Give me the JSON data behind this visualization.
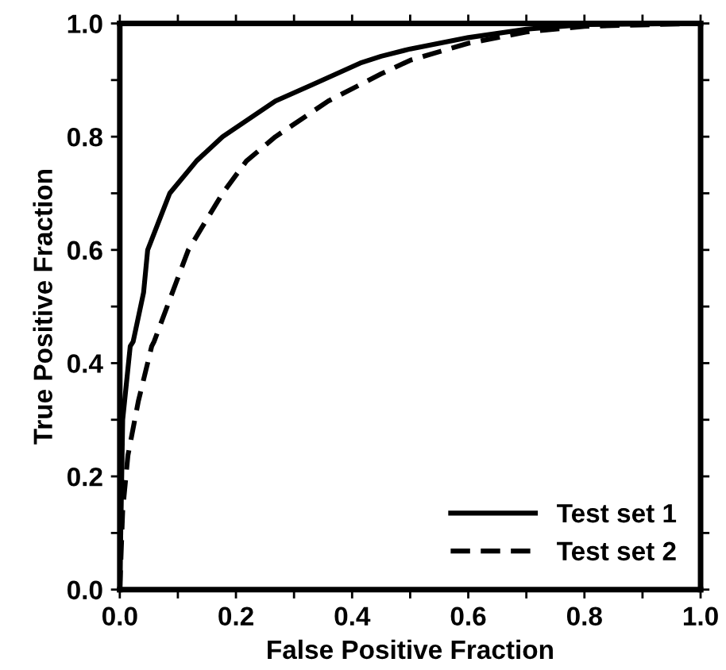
{
  "chart_data": {
    "type": "line",
    "xlabel": "False Positive Fraction",
    "ylabel": "True Positive Fraction",
    "xlim": [
      0,
      1
    ],
    "ylim": [
      0,
      1
    ],
    "xticks": [
      {
        "value": 0.0,
        "label": "0.0"
      },
      {
        "value": 0.1,
        "label": null
      },
      {
        "value": 0.2,
        "label": "0.2"
      },
      {
        "value": 0.3,
        "label": null
      },
      {
        "value": 0.4,
        "label": "0.4"
      },
      {
        "value": 0.5,
        "label": null
      },
      {
        "value": 0.6,
        "label": "0.6"
      },
      {
        "value": 0.7,
        "label": null
      },
      {
        "value": 0.8,
        "label": "0.8"
      },
      {
        "value": 0.9,
        "label": null
      },
      {
        "value": 1.0,
        "label": "1.0"
      }
    ],
    "yticks": [
      {
        "value": 0.0,
        "label": "0.0"
      },
      {
        "value": 0.1,
        "label": null
      },
      {
        "value": 0.2,
        "label": "0.2"
      },
      {
        "value": 0.3,
        "label": null
      },
      {
        "value": 0.4,
        "label": "0.4"
      },
      {
        "value": 0.5,
        "label": null
      },
      {
        "value": 0.6,
        "label": "0.6"
      },
      {
        "value": 0.7,
        "label": null
      },
      {
        "value": 0.8,
        "label": "0.8"
      },
      {
        "value": 0.9,
        "label": null
      },
      {
        "value": 1.0,
        "label": "1.0"
      }
    ],
    "grid": false,
    "legend": "bottom right",
    "marker": "none",
    "series": [
      {
        "name": "Test set 1",
        "color": "#000000",
        "line_style": "solid",
        "x": [
          0,
          0.005,
          0.018,
          0.023,
          0.041,
          0.048,
          0.086,
          0.132,
          0.177,
          0.268,
          0.332,
          0.414,
          0.45,
          0.5,
          0.6,
          0.7,
          0.8,
          1.0
        ],
        "values": [
          0,
          0.3,
          0.43,
          0.438,
          0.525,
          0.6,
          0.7,
          0.757,
          0.8,
          0.863,
          0.892,
          0.93,
          0.942,
          0.955,
          0.975,
          0.99,
          0.998,
          1.0
        ]
      },
      {
        "name": "Test set 2",
        "color": "#000000",
        "line_style": "dashed",
        "x": [
          0,
          0.005,
          0.014,
          0.032,
          0.055,
          0.059,
          0.091,
          0.118,
          0.177,
          0.218,
          0.268,
          0.359,
          0.45,
          0.5,
          0.6,
          0.7,
          0.8,
          1.0
        ],
        "values": [
          0,
          0.14,
          0.237,
          0.333,
          0.43,
          0.438,
          0.526,
          0.6,
          0.7,
          0.757,
          0.8,
          0.863,
          0.911,
          0.935,
          0.965,
          0.985,
          0.995,
          1.0
        ]
      }
    ]
  }
}
